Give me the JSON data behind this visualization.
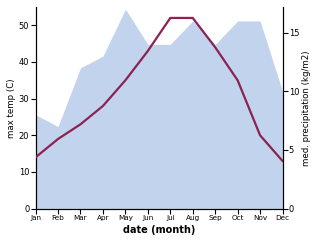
{
  "months": [
    1,
    2,
    3,
    4,
    5,
    6,
    7,
    8,
    9,
    10,
    11,
    12
  ],
  "month_labels": [
    "Jan",
    "Feb",
    "Mar",
    "Apr",
    "May",
    "Jun",
    "Jul",
    "Aug",
    "Sep",
    "Oct",
    "Nov",
    "Dec"
  ],
  "temp": [
    14,
    19,
    23,
    28,
    35,
    43,
    52,
    52,
    44,
    35,
    20,
    13
  ],
  "precip": [
    8,
    7,
    12,
    13,
    17,
    14,
    14,
    16,
    14,
    16,
    16,
    10
  ],
  "temp_color": "#8b2252",
  "precip_fill_color": "#aec6e8",
  "precip_fill_alpha": 0.75,
  "xlabel": "date (month)",
  "ylabel_left": "max temp (C)",
  "ylabel_right": "med. precipitation (kg/m2)",
  "ylim_left": [
    0,
    55
  ],
  "ylim_right": [
    0,
    17.19
  ],
  "yticks_left": [
    0,
    10,
    20,
    30,
    40,
    50
  ],
  "yticks_right": [
    0,
    5,
    10,
    15
  ],
  "bg_color": "#ffffff",
  "line_width": 1.6
}
